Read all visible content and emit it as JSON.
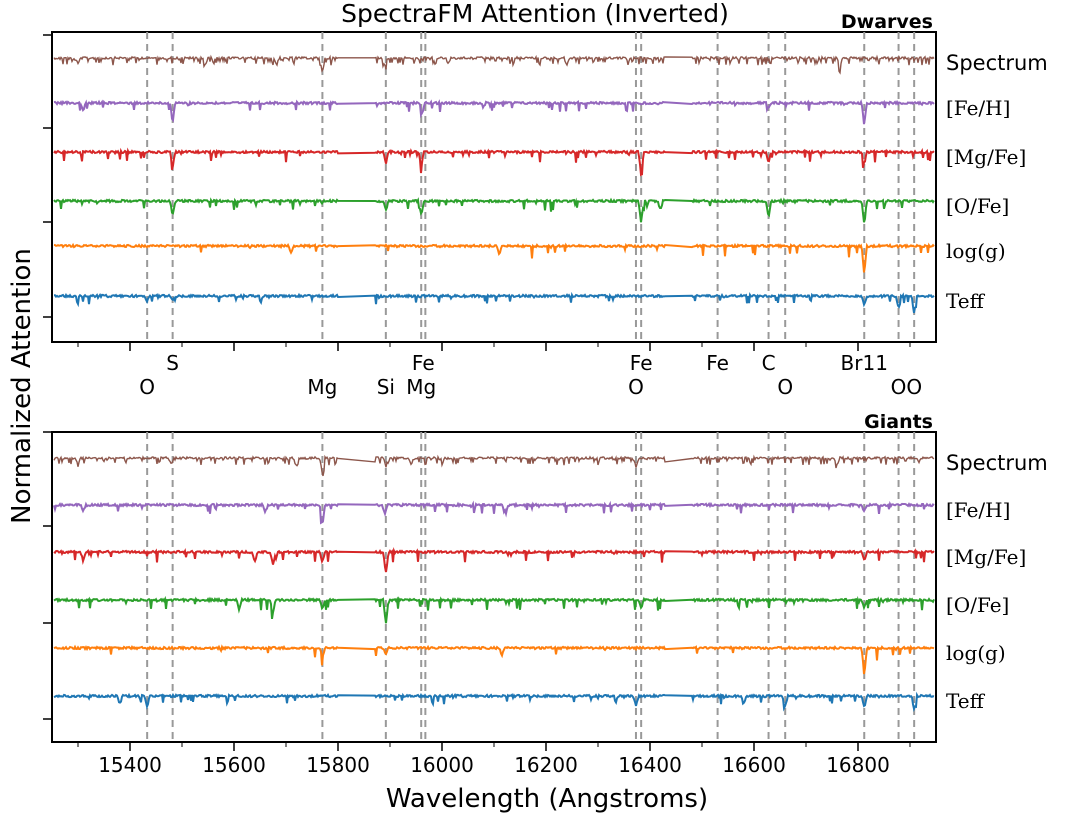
{
  "chart_data": {
    "type": "line",
    "title": "SpectraFM Attention (Inverted)",
    "xlabel": "Wavelength (Angstroms)",
    "ylabel": "Normalized Attention",
    "xlim": [
      15250,
      16950
    ],
    "x_ticks": [
      15400,
      15600,
      15800,
      16000,
      16200,
      16400,
      16600,
      16800
    ],
    "grid": false,
    "gap_ranges": [
      [
        15800,
        15870
      ],
      [
        16430,
        16480
      ]
    ],
    "line_markers": [
      {
        "x": 15433
      },
      {
        "x": 15482
      },
      {
        "x": 15770
      },
      {
        "x": 15892
      },
      {
        "x": 15960
      },
      {
        "x": 15968
      },
      {
        "x": 16373
      },
      {
        "x": 16383
      },
      {
        "x": 16530
      },
      {
        "x": 16628
      },
      {
        "x": 16660
      },
      {
        "x": 16812
      },
      {
        "x": 16878
      },
      {
        "x": 16908
      }
    ],
    "element_labels_top": [
      {
        "text": "S",
        "x": 15482
      },
      {
        "text": "Fe",
        "x": 15964
      },
      {
        "text": "Fe",
        "x": 16383
      },
      {
        "text": "Fe",
        "x": 16530
      },
      {
        "text": "C",
        "x": 16628
      },
      {
        "text": "Br11",
        "x": 16812
      }
    ],
    "element_labels_bottom": [
      {
        "text": "O",
        "x": 15433
      },
      {
        "text": "Mg",
        "x": 15770
      },
      {
        "text": "Si",
        "x": 15892
      },
      {
        "text": "Mg",
        "x": 15960
      },
      {
        "text": "O",
        "x": 16373
      },
      {
        "text": "O",
        "x": 16660
      },
      {
        "text": "OO",
        "x": 16893
      }
    ],
    "series_labels": [
      {
        "text": "Spectrum",
        "color": "#8c564b"
      },
      {
        "text": "[Fe/H]",
        "color": "#9467bd"
      },
      {
        "text": "[Mg/Fe]",
        "color": "#d62728"
      },
      {
        "text": "[O/Fe]",
        "color": "#2ca02c"
      },
      {
        "text": "log(g)",
        "color": "#ff7f0e"
      },
      {
        "text": "Teff",
        "color": "#1f77b4"
      }
    ],
    "panels": [
      {
        "name": "Dwarves",
        "series": [
          {
            "dips": [
              [
                15770,
                0.9
              ],
              [
                15545,
                0.45
              ],
              [
                15682,
                0.45
              ],
              [
                15890,
                0.5
              ],
              [
                16012,
                0.4
              ],
              [
                16240,
                0.45
              ],
              [
                16765,
                0.6
              ],
              [
                15300,
                0.4
              ]
            ]
          },
          {
            "dips": [
              [
                15482,
                1.0
              ],
              [
                15962,
                0.5
              ],
              [
                16812,
                1.0
              ],
              [
                15310,
                0.4
              ],
              [
                16628,
                0.3
              ]
            ]
          },
          {
            "dips": [
              [
                15482,
                0.6
              ],
              [
                16383,
                1.0
              ],
              [
                16628,
                0.5
              ],
              [
                16812,
                0.5
              ],
              [
                15892,
                0.5
              ],
              [
                15960,
                0.6
              ]
            ]
          },
          {
            "dips": [
              [
                16812,
                1.0
              ],
              [
                16383,
                0.9
              ],
              [
                16628,
                0.7
              ],
              [
                15482,
                0.6
              ],
              [
                15960,
                0.6
              ],
              [
                15892,
                0.4
              ],
              [
                16420,
                0.4
              ]
            ]
          },
          {
            "dips": [
              [
                16812,
                1.0
              ],
              [
                15710,
                0.25
              ],
              [
                16110,
                0.3
              ]
            ]
          },
          {
            "dips": [
              [
                16908,
                1.0
              ],
              [
                16878,
                0.7
              ],
              [
                16812,
                0.5
              ],
              [
                15482,
                0.3
              ],
              [
                15433,
                0.3
              ]
            ]
          }
        ]
      },
      {
        "name": "Giants",
        "series": [
          {
            "dips": [
              [
                15770,
                1.0
              ],
              [
                15892,
                0.55
              ],
              [
                16373,
                0.55
              ],
              [
                16760,
                0.5
              ],
              [
                15300,
                0.5
              ],
              [
                15480,
                0.45
              ],
              [
                15720,
                0.55
              ]
            ]
          },
          {
            "dips": [
              [
                15770,
                1.0
              ],
              [
                15660,
                0.4
              ],
              [
                15890,
                0.45
              ],
              [
                16120,
                0.35
              ],
              [
                16812,
                0.35
              ],
              [
                15310,
                0.3
              ]
            ]
          },
          {
            "dips": [
              [
                15892,
                0.9
              ],
              [
                15675,
                0.55
              ],
              [
                15640,
                0.45
              ],
              [
                15770,
                0.45
              ],
              [
                16812,
                0.35
              ],
              [
                15310,
                0.4
              ]
            ]
          },
          {
            "dips": [
              [
                15892,
                1.0
              ],
              [
                15675,
                0.55
              ],
              [
                15610,
                0.45
              ],
              [
                15770,
                0.4
              ],
              [
                16383,
                0.35
              ],
              [
                16812,
                0.35
              ]
            ]
          },
          {
            "dips": [
              [
                16812,
                1.0
              ],
              [
                15770,
                0.35
              ],
              [
                15892,
                0.25
              ],
              [
                16115,
                0.25
              ]
            ]
          },
          {
            "dips": [
              [
                15433,
                0.6
              ],
              [
                16373,
                0.6
              ],
              [
                16660,
                0.6
              ],
              [
                16908,
                0.8
              ],
              [
                16812,
                0.65
              ],
              [
                16580,
                0.5
              ],
              [
                15380,
                0.4
              ]
            ]
          }
        ]
      }
    ]
  }
}
